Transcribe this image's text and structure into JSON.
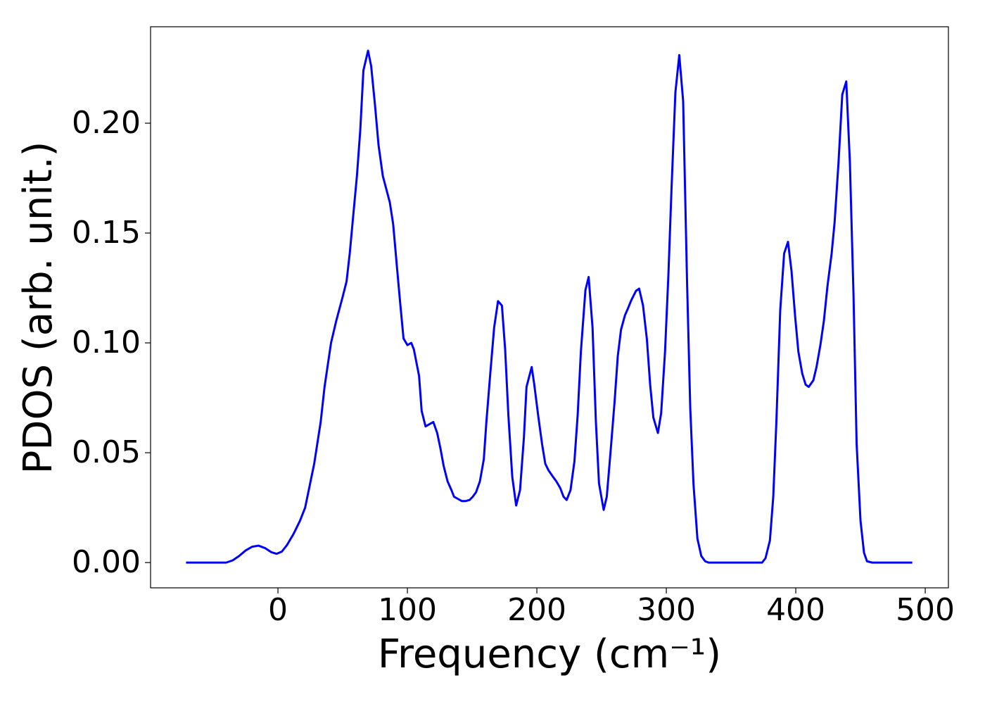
{
  "chart_data": {
    "type": "line",
    "x_label": "Frequency (cm⁻¹)",
    "y_label": "PDOS (arb. unit.)",
    "xlim": [
      -98.4,
      517.9
    ],
    "ylim": [
      -0.0115,
      0.2439
    ],
    "xticks": [
      0,
      100,
      200,
      300,
      400,
      500
    ],
    "yticks": [
      {
        "value": 0,
        "label": "0.00"
      },
      {
        "value": 0.05,
        "label": "0.05"
      },
      {
        "value": 0.1,
        "label": "0.10"
      },
      {
        "value": 0.15,
        "label": "0.15"
      },
      {
        "value": 0.2,
        "label": "0.20"
      }
    ],
    "grid": false,
    "x": [
      -71,
      -40,
      -35,
      -30,
      -25,
      -20,
      -15,
      -10,
      -5,
      -1,
      3,
      7,
      12,
      17,
      21,
      24.5,
      28,
      33,
      36,
      41,
      45,
      50,
      53,
      55.5,
      58,
      61,
      63.6,
      66,
      69.6,
      72,
      75,
      77.7,
      81,
      83.7,
      86.4,
      89,
      92,
      94.6,
      97,
      100,
      103,
      105,
      109,
      111,
      114,
      117,
      120,
      123,
      125.5,
      128,
      131,
      134,
      136,
      139,
      142,
      145,
      148,
      150.5,
      153,
      156,
      159,
      161,
      164,
      167,
      170,
      173,
      175.5,
      178,
      181,
      184,
      187,
      190,
      192,
      196,
      198,
      201,
      204,
      206.5,
      209,
      212.5,
      215,
      218,
      220.6,
      223,
      226,
      229,
      231.5,
      234,
      237.5,
      240,
      243,
      245.6,
      248,
      251.6,
      254,
      257,
      260,
      262.5,
      265,
      268,
      270.6,
      273,
      276.6,
      279,
      282,
      285,
      287.5,
      290,
      293.5,
      296,
      299,
      301.6,
      304,
      307,
      310,
      313,
      316,
      318.5,
      321,
      324,
      327,
      330,
      332.6,
      374,
      376.6,
      380,
      382.6,
      385,
      388,
      391,
      394,
      396.7,
      399.5,
      402,
      405,
      407.6,
      410,
      413.6,
      416,
      419,
      421.7,
      424.5,
      427.7,
      430,
      433,
      435.9,
      439,
      441.8,
      444.6,
      447,
      450,
      452.7,
      455,
      459,
      490
    ],
    "series": [
      {
        "name": "PDOS",
        "color": "#0000ff",
        "values": [
          0,
          0,
          0.001,
          0.003,
          0.0055,
          0.0072,
          0.0077,
          0.0066,
          0.0047,
          0.004,
          0.005,
          0.008,
          0.013,
          0.019,
          0.025,
          0.035,
          0.045,
          0.064,
          0.08,
          0.1,
          0.11,
          0.121,
          0.128,
          0.141,
          0.157,
          0.176,
          0.197,
          0.224,
          0.233,
          0.226,
          0.208,
          0.19,
          0.176,
          0.17,
          0.164,
          0.154,
          0.134,
          0.117,
          0.102,
          0.099,
          0.1,
          0.097,
          0.085,
          0.069,
          0.062,
          0.063,
          0.064,
          0.059,
          0.052,
          0.044,
          0.037,
          0.033,
          0.03,
          0.029,
          0.028,
          0.028,
          0.0285,
          0.03,
          0.032,
          0.037,
          0.047,
          0.064,
          0.086,
          0.107,
          0.119,
          0.117,
          0.097,
          0.067,
          0.039,
          0.026,
          0.033,
          0.057,
          0.08,
          0.089,
          0.081,
          0.067,
          0.054,
          0.045,
          0.042,
          0.039,
          0.037,
          0.034,
          0.03,
          0.0285,
          0.033,
          0.046,
          0.067,
          0.096,
          0.124,
          0.13,
          0.107,
          0.064,
          0.036,
          0.024,
          0.03,
          0.051,
          0.073,
          0.094,
          0.106,
          0.1125,
          0.116,
          0.1195,
          0.1237,
          0.1247,
          0.117,
          0.1016,
          0.081,
          0.066,
          0.059,
          0.068,
          0.096,
          0.131,
          0.17,
          0.214,
          0.231,
          0.21,
          0.128,
          0.07,
          0.0356,
          0.011,
          0.003,
          0.0006,
          0,
          0,
          0.002,
          0.01,
          0.03,
          0.064,
          0.115,
          0.1407,
          0.146,
          0.1327,
          0.112,
          0.096,
          0.086,
          0.081,
          0.08,
          0.083,
          0.089,
          0.099,
          0.11,
          0.126,
          0.1407,
          0.155,
          0.182,
          0.213,
          0.219,
          0.182,
          0.1215,
          0.054,
          0.019,
          0.0045,
          0.0006,
          0,
          0
        ]
      }
    ]
  }
}
